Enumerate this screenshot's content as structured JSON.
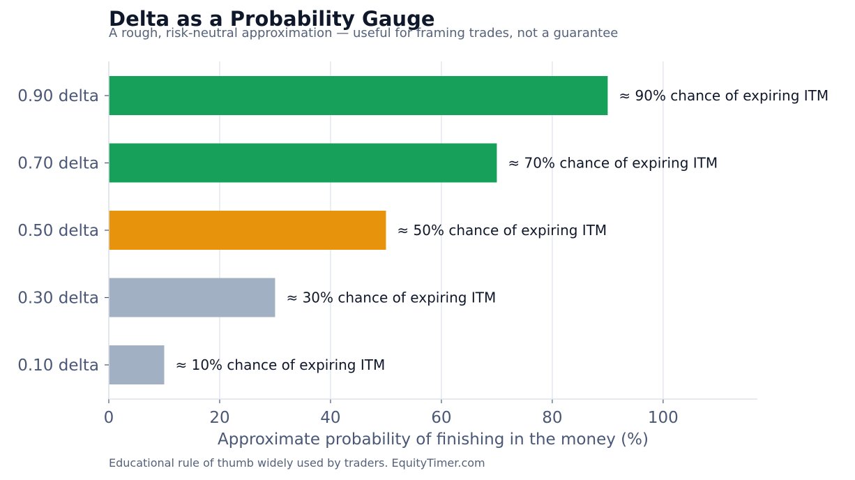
{
  "chart_data": {
    "type": "bar",
    "orientation": "horizontal",
    "title": "Delta as a Probability Gauge",
    "subtitle": "A rough, risk-neutral approximation — useful for framing trades, not a guarantee",
    "footnote": "Educational rule of thumb widely used by traders. EquityTimer.com",
    "xlabel": "Approximate probability of finishing in the money (%)",
    "ylabel": "",
    "xlim": [
      0,
      117
    ],
    "xticks": [
      0,
      20,
      40,
      60,
      80,
      100
    ],
    "grid": "vertical",
    "categories": [
      "0.90 delta",
      "0.70 delta",
      "0.50 delta",
      "0.30 delta",
      "0.10 delta"
    ],
    "values": [
      90,
      70,
      50,
      30,
      10
    ],
    "labels": [
      "≈ 90% chance of expiring ITM",
      "≈ 70% chance of expiring ITM",
      "≈ 50% chance of expiring ITM",
      "≈ 30% chance of expiring ITM",
      "≈ 10% chance of expiring ITM"
    ],
    "colors": [
      "#16a05a",
      "#16a05a",
      "#e8930c",
      "#a1b0c2",
      "#a1b0c2"
    ],
    "grid_color": "#e3e8f0",
    "axis_color": "#dde3ec"
  }
}
